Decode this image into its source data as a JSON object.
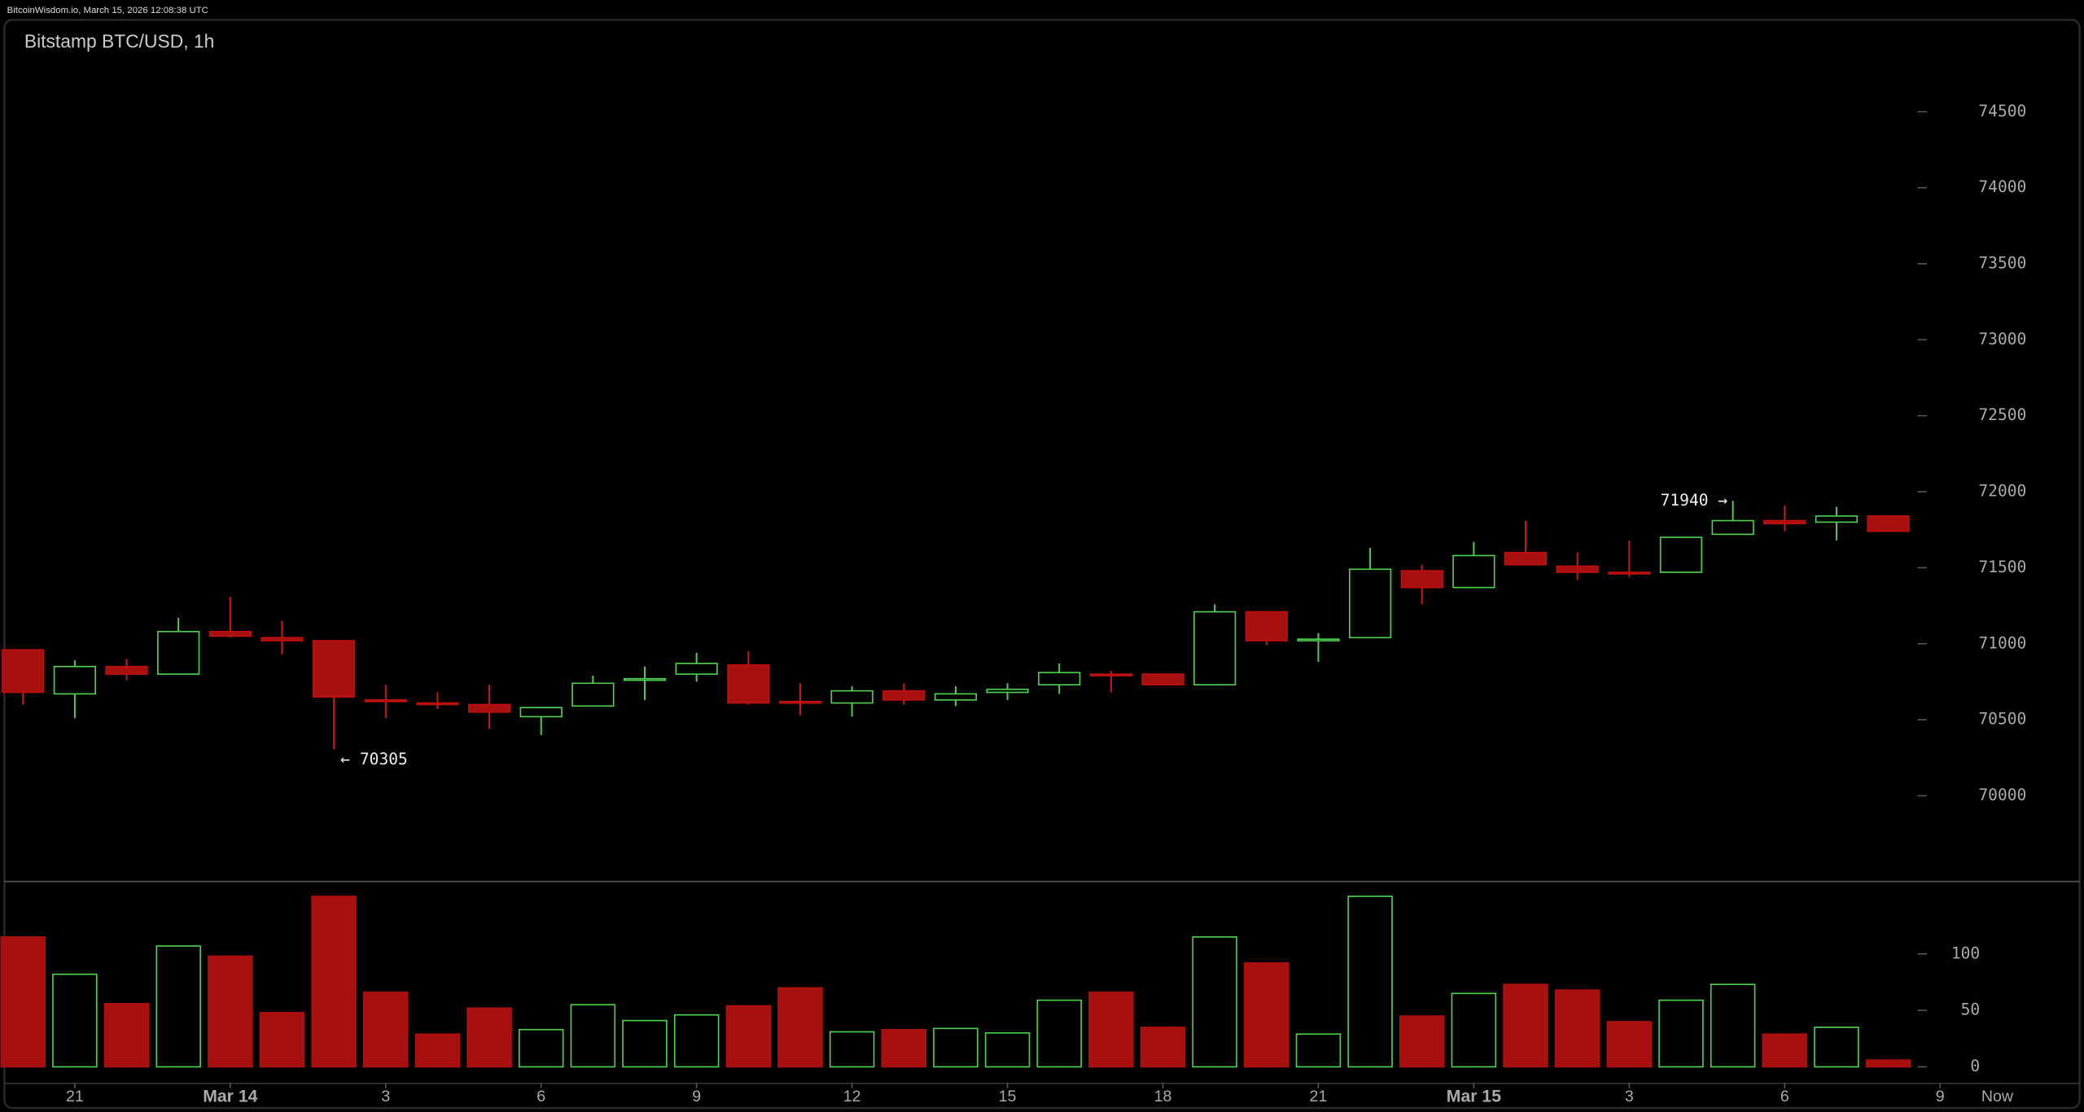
{
  "header": "BitcoinWisdom.io, March 15, 2026 12:08:38 UTC",
  "chart_data": {
    "type": "candlestick",
    "title": "Bitstamp BTC/USD, 1h",
    "categories": [
      null,
      "21",
      null,
      null,
      "Mar 14",
      null,
      null,
      "3",
      null,
      null,
      "6",
      null,
      null,
      "9",
      null,
      null,
      "12",
      null,
      null,
      "15",
      null,
      null,
      "18",
      null,
      null,
      "21",
      null,
      null,
      "Mar 15",
      null,
      null,
      "3",
      null,
      null,
      "6",
      null,
      null,
      "9"
    ],
    "now_label": "Now",
    "open": [
      70960,
      70670,
      70850,
      70800,
      71080,
      71040,
      71020,
      70630,
      70610,
      70600,
      70520,
      70590,
      70760,
      70800,
      70860,
      70620,
      70610,
      70690,
      70630,
      70680,
      70730,
      70800,
      70800,
      70730,
      71210,
      71020,
      71040,
      71480,
      71370,
      71600,
      71510,
      71470,
      71470,
      71720,
      71810,
      71800,
      71840,
      null
    ],
    "high": [
      70960,
      70890,
      70900,
      71170,
      71310,
      71150,
      71020,
      70730,
      70680,
      70730,
      70580,
      70790,
      70850,
      70940,
      70950,
      70740,
      70720,
      70740,
      70720,
      70740,
      70870,
      70820,
      70800,
      71260,
      71210,
      71070,
      71630,
      71520,
      71670,
      71810,
      71600,
      71680,
      71700,
      71940,
      71910,
      71900,
      71840,
      null
    ],
    "low": [
      70600,
      70510,
      70760,
      70800,
      71040,
      70930,
      70305,
      70510,
      70570,
      70440,
      70400,
      70590,
      70630,
      70750,
      70600,
      70530,
      70520,
      70600,
      70590,
      70630,
      70670,
      70680,
      70730,
      70730,
      70990,
      70880,
      71040,
      71260,
      71370,
      71520,
      71420,
      71440,
      71470,
      71720,
      71740,
      71680,
      71740,
      null
    ],
    "close": [
      70680,
      70850,
      70800,
      71080,
      71050,
      71020,
      70650,
      70620,
      70600,
      70550,
      70580,
      70740,
      70770,
      70870,
      70610,
      70610,
      70690,
      70630,
      70670,
      70700,
      70810,
      70790,
      70730,
      71210,
      71020,
      71030,
      71490,
      71370,
      71580,
      71520,
      71470,
      71460,
      71700,
      71810,
      71790,
      71840,
      71740,
      null
    ],
    "volume": [
      115,
      82,
      56,
      107,
      98,
      48,
      151,
      66,
      29,
      52,
      33,
      55,
      41,
      46,
      54,
      70,
      31,
      33,
      34,
      30,
      59,
      66,
      35,
      115,
      92,
      29,
      151,
      45,
      65,
      73,
      68,
      40,
      59,
      73,
      29,
      35,
      6,
      null
    ],
    "up_color": "#4fd14f",
    "down_color": "#a80f0f",
    "ylim": [
      69440,
      74890
    ],
    "yticks": [
      70000,
      70500,
      71000,
      71500,
      72000,
      72500,
      73000,
      73500,
      74000,
      74500
    ],
    "y2lim": [
      0,
      160
    ],
    "y2ticks": [
      0,
      50,
      100
    ],
    "annotations": [
      {
        "label": "← 70305",
        "value": 70305,
        "side": "right"
      },
      {
        "label": "71940 →",
        "value": 71940,
        "side": "left"
      }
    ]
  }
}
